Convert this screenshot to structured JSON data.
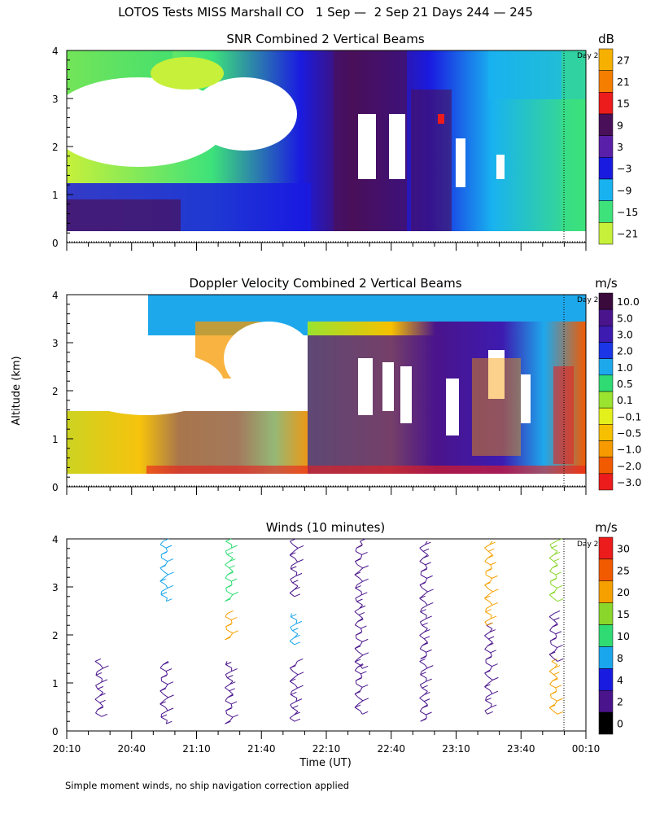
{
  "title": "LOTOS Tests MISS Marshall CO   1 Sep —  2 Sep 21 Days 244 — 245",
  "footnote": "Simple moment winds, no ship navigation correction applied",
  "shared": {
    "y_axis_label": "Altitude (km)",
    "x_axis_label": "Time (UT)",
    "x_ticks": [
      "20:10",
      "20:40",
      "21:10",
      "21:40",
      "22:10",
      "22:40",
      "23:10",
      "23:40",
      "00:10"
    ],
    "y_ticks": [
      "0",
      "1",
      "2",
      "3",
      "4"
    ],
    "day_marker_label": "Day 2"
  },
  "chart_data": [
    {
      "type": "heatmap",
      "title": "SNR Combined 2 Vertical Beams",
      "units": "dB",
      "ylim": [
        0,
        4
      ],
      "colorbar": {
        "labels": [
          "27",
          "21",
          "15",
          "9",
          "3",
          "−3",
          "−9",
          "−15",
          "−21"
        ],
        "colors": [
          "#f6b100",
          "#f57d00",
          "#ec1c1c",
          "#4a0f59",
          "#5a1fa8",
          "#1a1be0",
          "#19b2f0",
          "#3de27a",
          "#c6f03a"
        ]
      }
    },
    {
      "type": "heatmap",
      "title": "Doppler Velocity Combined 2 Vertical Beams",
      "units": "m/s",
      "ylim": [
        0,
        4
      ],
      "colorbar": {
        "labels": [
          "10.0",
          "5.0",
          "3.0",
          "2.0",
          "1.0",
          "0.5",
          "0.1",
          "−0.1",
          "−0.5",
          "−1.0",
          "−2.0",
          "−3.0"
        ],
        "colors": [
          "#3a0a3c",
          "#4a148c",
          "#3d1bb0",
          "#1a36e6",
          "#1ea8ec",
          "#2fdb72",
          "#9ae32f",
          "#e3f01c",
          "#f6c000",
          "#f69a00",
          "#f25a00",
          "#ec1c1c"
        ]
      }
    },
    {
      "type": "scatter",
      "title": "Winds (10 minutes)",
      "units": "m/s",
      "ylim": [
        0,
        4
      ],
      "colorbar": {
        "labels": [
          "30",
          "25",
          "20",
          "15",
          "10",
          "8",
          "4",
          "2",
          "0"
        ],
        "colors": [
          "#ec1c1c",
          "#f25a00",
          "#f6a000",
          "#8ad62a",
          "#2fdb72",
          "#1aa6ec",
          "#1a1be0",
          "#4a148c",
          "#000000"
        ]
      },
      "profiles": [
        {
          "time": "20:25",
          "segments": [
            {
              "from": 0.3,
              "to": 1.45,
              "color": "#4a148c"
            }
          ]
        },
        {
          "time": "20:55",
          "segments": [
            {
              "from": 0.15,
              "to": 1.45,
              "color": "#4a148c"
            },
            {
              "from": 2.7,
              "to": 3.95,
              "color": "#1aa6ec"
            }
          ]
        },
        {
          "time": "21:25",
          "segments": [
            {
              "from": 0.15,
              "to": 1.45,
              "color": "#4a148c"
            },
            {
              "from": 1.9,
              "to": 2.45,
              "color": "#f6a000"
            },
            {
              "from": 2.7,
              "to": 3.95,
              "color": "#2fdb72"
            }
          ]
        },
        {
          "time": "21:55",
          "segments": [
            {
              "from": 0.2,
              "to": 1.45,
              "color": "#4a148c"
            },
            {
              "from": 1.8,
              "to": 2.45,
              "color": "#1aa6ec"
            },
            {
              "from": 2.8,
              "to": 3.95,
              "color": "#4a148c"
            }
          ]
        },
        {
          "time": "22:25",
          "segments": [
            {
              "from": 0.35,
              "to": 1.4,
              "color": "#4a148c"
            },
            {
              "from": 1.3,
              "to": 3.95,
              "color": "#4a148c"
            }
          ]
        },
        {
          "time": "22:55",
          "segments": [
            {
              "from": 0.2,
              "to": 1.45,
              "color": "#4a148c"
            },
            {
              "from": 1.5,
              "to": 3.95,
              "color": "#4a148c"
            }
          ]
        },
        {
          "time": "23:25",
          "segments": [
            {
              "from": 0.35,
              "to": 2.2,
              "color": "#4a148c"
            },
            {
              "from": 2.2,
              "to": 3.95,
              "color": "#f6a000"
            }
          ]
        },
        {
          "time": "23:55",
          "segments": [
            {
              "from": 0.35,
              "to": 1.45,
              "color": "#f6a000"
            },
            {
              "from": 1.45,
              "to": 2.45,
              "color": "#4a148c"
            },
            {
              "from": 2.7,
              "to": 3.95,
              "color": "#8ad62a"
            }
          ]
        }
      ]
    }
  ]
}
